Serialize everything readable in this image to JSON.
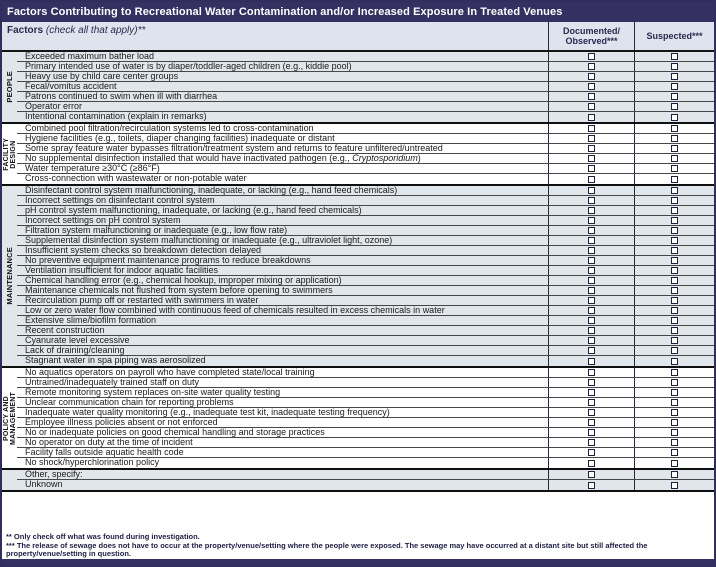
{
  "title": "Factors Contributing to Recreational Water Contamination and/or Increased Exposure In Treated Venues",
  "header": {
    "factors_label": "Factors",
    "factors_note": " (check all that apply)**",
    "documented_label": "Documented/\nObserved***",
    "suspected_label": "Suspected***"
  },
  "italic_terms": [
    "Cryptosporidium"
  ],
  "sections": [
    {
      "label": "PEOPLE",
      "shaded": true,
      "rows": [
        "Exceeded maximum bather load",
        "Primary intended use of water is by diaper/toddler-aged children (e.g., kiddie pool)",
        "Heavy use by child care center groups",
        "Fecal/vomitus accident",
        "Patrons continued to swim when ill with diarrhea",
        "Operator error",
        "Intentional contamination (explain in remarks)"
      ]
    },
    {
      "label": "FACILITY\nDESIGN",
      "shaded": false,
      "rows": [
        "Combined pool filtration/recirculation systems led to cross-contamination",
        "Hygiene facilities (e.g., toilets, diaper changing facilities) inadequate or distant",
        "Some spray feature water bypasses filtration/treatment system and returns to feature unfiltered/untreated",
        "No supplemental disinfection installed that would have inactivated pathogen  (e.g., Cryptosporidium)",
        "Water temperature ≥30°C (≥86°F)",
        "Cross-connection with wastewater or non-potable water"
      ]
    },
    {
      "label": "MAINTENANCE",
      "shaded": true,
      "rows": [
        "Disinfectant control system malfunctioning, inadequate, or lacking (e.g., hand feed chemicals)",
        "Incorrect settings on disinfectant control system",
        "pH control system malfunctioning, inadequate, or lacking (e.g., hand feed chemicals)",
        "Incorrect settings on pH control system",
        "Filtration system malfunctioning or inadequate (e.g., low flow rate)",
        "Supplemental disinfection system malfunctioning or inadequate (e.g., ultraviolet light, ozone)",
        "Insufficient system checks so breakdown detection delayed",
        "No preventive equipment maintenance programs to reduce breakdowns",
        "Ventilation insufficient for indoor aquatic facilities",
        "Chemical handling error (e.g., chemical hookup, improper mixing or application)",
        "Maintenance chemicals not flushed from system before opening to swimmers",
        "Recirculation pump off or restarted with swimmers in water",
        "Low or zero water flow combined with continuous feed of chemicals resulted in excess chemicals in water",
        "Extensive slime/biofilm formation",
        "Recent construction",
        "Cyanurate level excessive",
        "Lack of draining/cleaning",
        "Stagnant water in spa piping was aerosolized"
      ]
    },
    {
      "label": "POLICY AND\nMANAGEMENT",
      "shaded": false,
      "rows": [
        "No aquatics operators on payroll who have completed state/local training",
        "Untrained/inadequately trained staff on duty",
        "Remote monitoring system replaces on-site water quality testing",
        "Unclear communication chain for reporting problems",
        "Inadequate water quality monitoring (e.g., inadequate test kit, inadequate testing frequency)",
        "Employee illness policies absent or not enforced",
        "No or inadequate policies on good chemical handling and storage practices",
        "No operator on duty at the time of incident",
        "Facility falls outside aquatic health code",
        "No shock/hyperchlorination policy"
      ]
    },
    {
      "label": "",
      "shaded": true,
      "rows": [
        "Other, specify:",
        "Unknown"
      ]
    }
  ],
  "checkbox_columns": [
    "Documented/Observed***",
    "Suspected***"
  ],
  "footnotes": [
    "** Only check off what was found during investigation.",
    "*** The release of sewage does not have to occur at the property/venue/setting where the people were exposed. The sewage may have occurred at a distant site but still affected the property/venue/setting in question."
  ],
  "colors": {
    "title_bar": "#343061",
    "header_bg": "#dde4ed",
    "shaded_row_bg": "#e0e6ea",
    "outer_border": "#312d5c",
    "header_text": "#2a2950"
  }
}
